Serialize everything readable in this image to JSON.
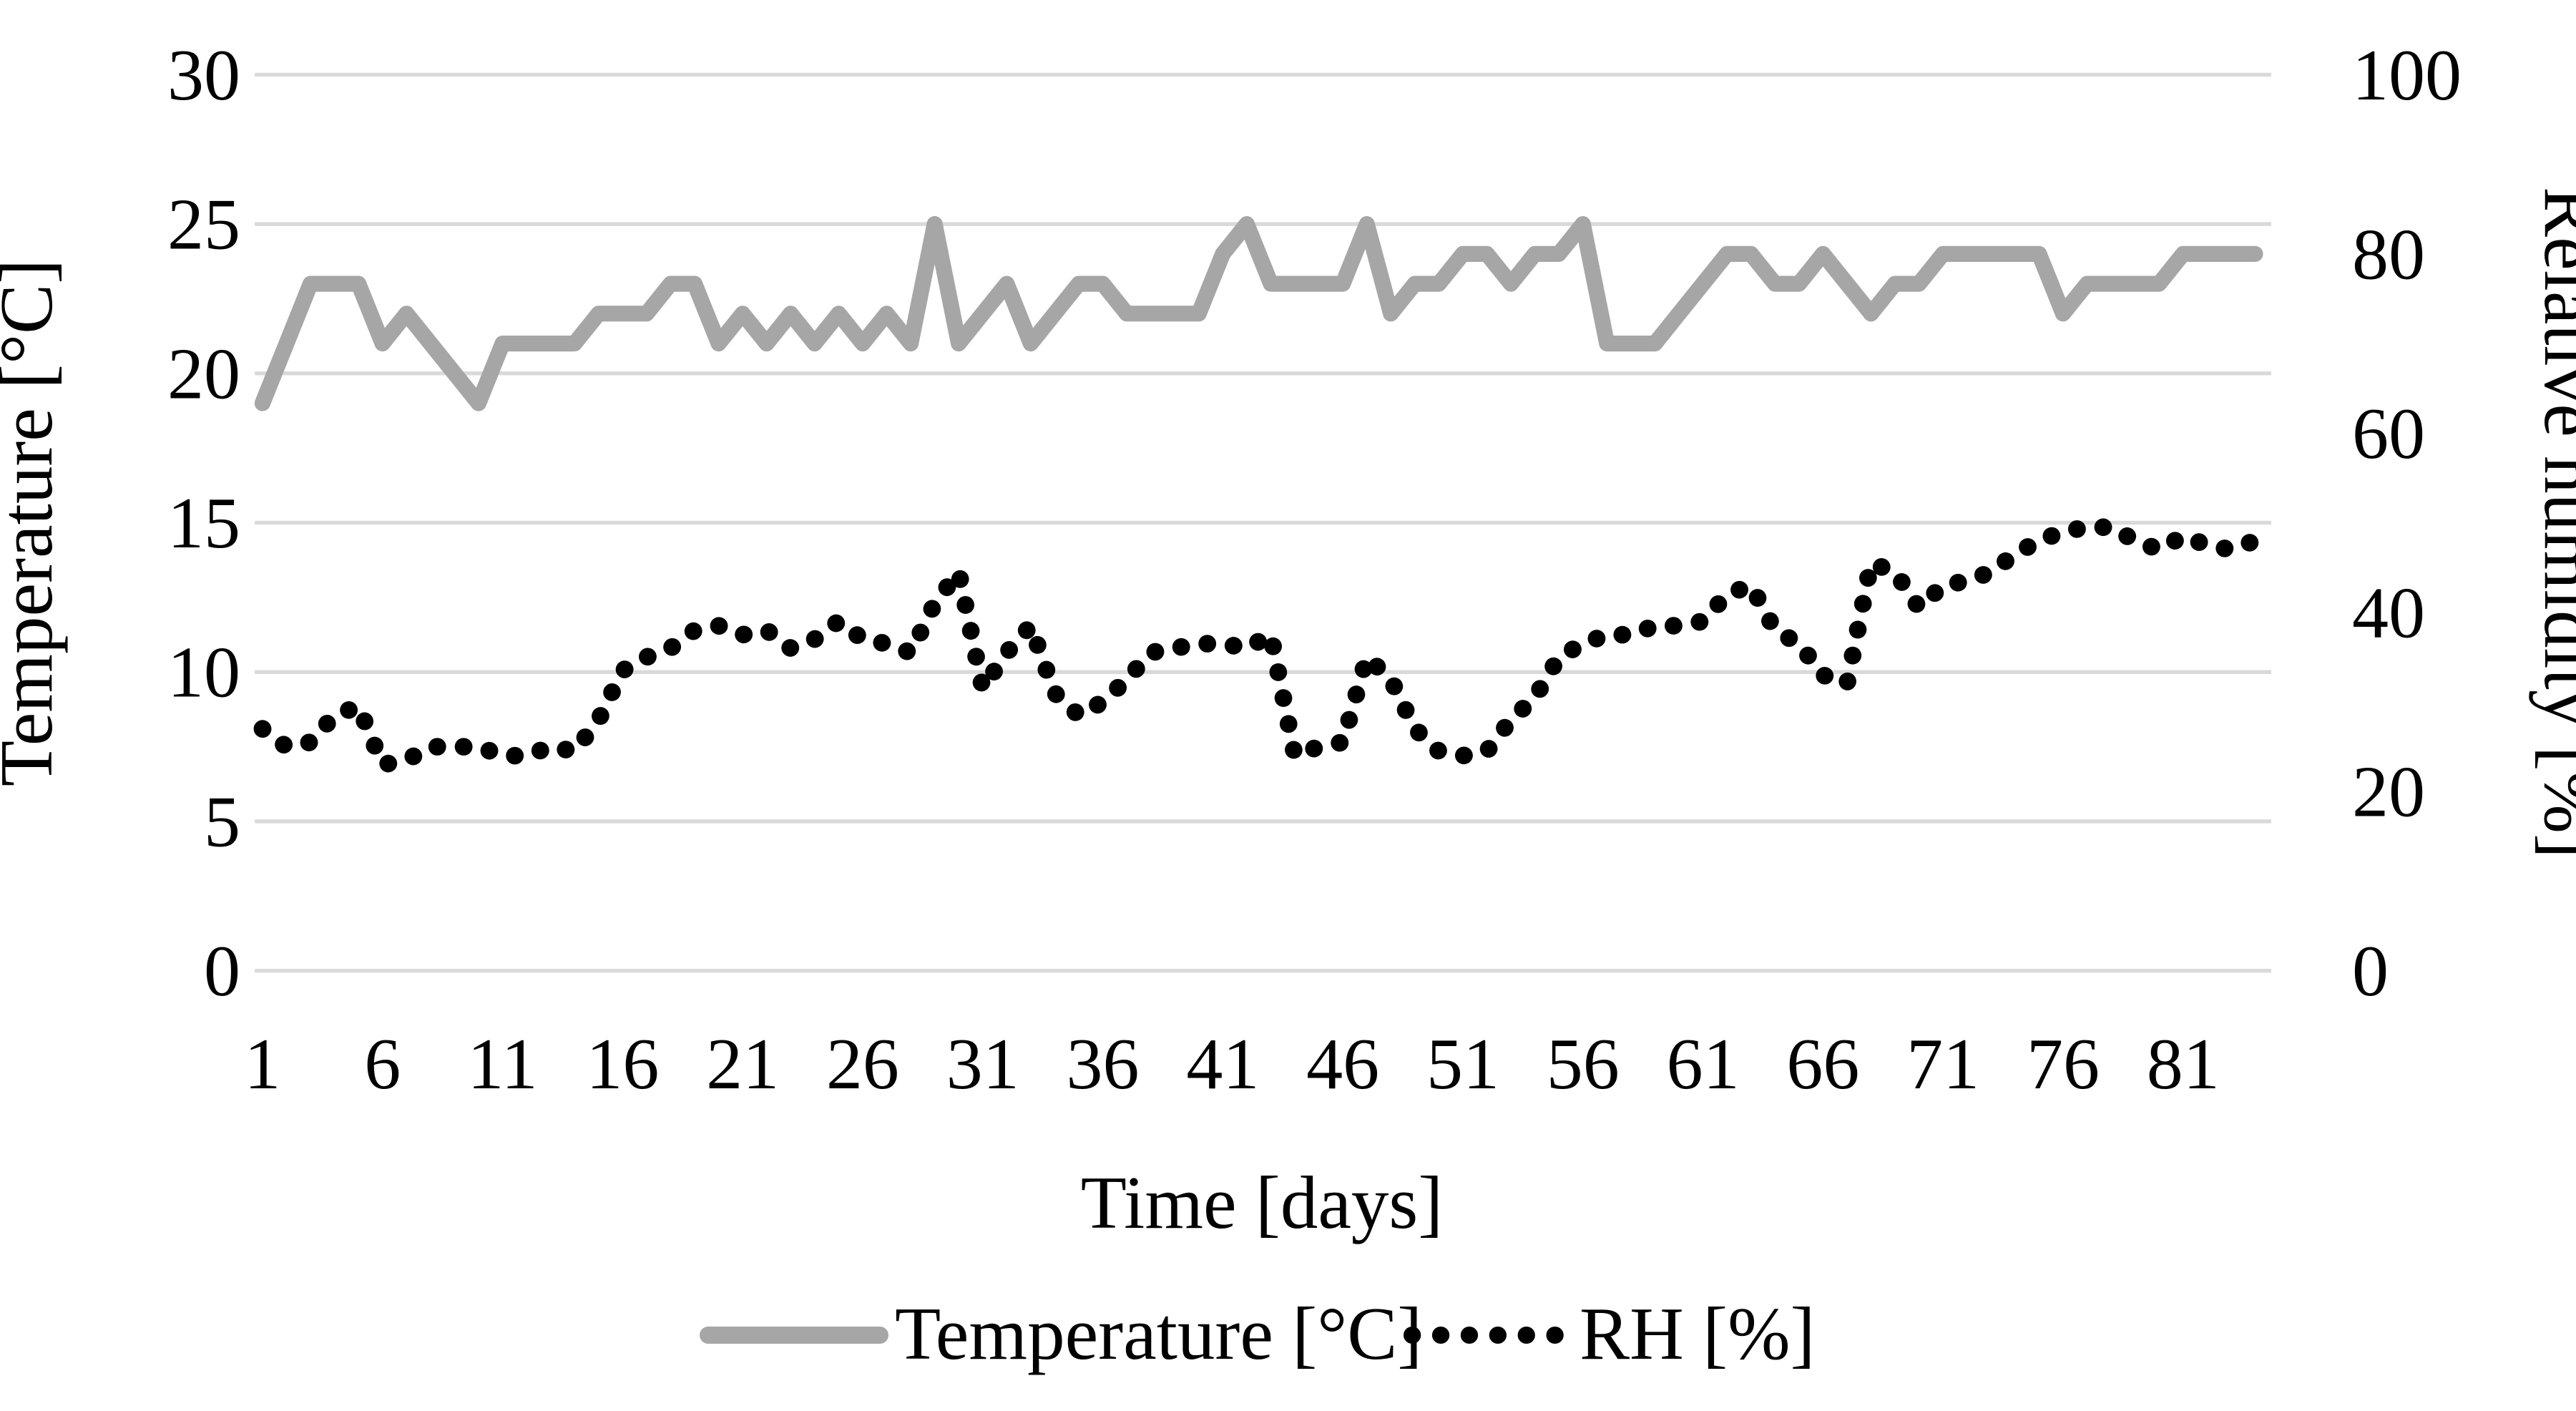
{
  "chart_data": {
    "type": "line",
    "title": "",
    "xlabel": "Time [days]",
    "ylabel_left": "Temperature [°C]",
    "ylabel_right": "Relative humidity [%]",
    "x_days": 84,
    "x_tick_labels": [
      1,
      6,
      11,
      16,
      21,
      26,
      31,
      36,
      41,
      46,
      51,
      56,
      61,
      66,
      71,
      76,
      81
    ],
    "left_axis": {
      "min": 0,
      "max": 30,
      "ticks": [
        30,
        25,
        20,
        15,
        10,
        5,
        0
      ]
    },
    "right_axis": {
      "min": 0,
      "max": 100,
      "ticks": [
        100,
        80,
        60,
        40,
        20,
        0
      ]
    },
    "grid": "horizontal",
    "grid_color": "#d9d9d9",
    "background_color": "#ffffff",
    "legend_position": "bottom",
    "series": [
      {
        "name": "Temperature [°C]",
        "axis": "left",
        "style": "solid",
        "color": "#a6a6a6",
        "values": [
          19,
          21,
          23,
          23,
          23,
          21,
          22,
          21,
          20,
          19,
          21,
          21,
          21,
          21,
          22,
          22,
          22,
          23,
          23,
          21,
          22,
          21,
          22,
          21,
          22,
          21,
          22,
          21,
          25,
          21,
          22,
          23,
          21,
          22,
          23,
          23,
          22,
          22,
          22,
          22,
          24,
          25,
          23,
          23,
          23,
          23,
          25,
          22,
          23,
          23,
          24,
          24,
          23,
          24,
          24,
          25,
          21,
          21,
          21,
          22,
          23,
          24,
          24,
          23,
          23,
          24,
          23,
          22,
          23,
          23,
          24,
          24,
          24,
          24,
          24,
          22,
          23,
          23,
          23,
          23,
          24,
          24,
          24,
          24
        ]
      },
      {
        "name": "RH [%]",
        "axis": "right",
        "style": "dotted",
        "color": "#000000",
        "values": [
          27,
          25,
          25.5,
          28.5,
          29.5,
          23,
          23.5,
          25,
          25,
          25,
          24,
          24,
          25,
          24.5,
          28,
          33.5,
          35,
          36,
          38,
          38.5,
          37.5,
          38,
          36,
          37,
          39,
          37,
          36.5,
          35.5,
          41,
          44.5,
          31.5,
          35.5,
          38.5,
          31,
          28.5,
          30,
          32.5,
          35.5,
          36,
          36.5,
          36.5,
          36,
          37.5,
          24,
          25,
          25.5,
          35,
          32.5,
          27,
          24.5,
          24,
          24.5,
          28,
          30.5,
          35,
          36.5,
          37.5,
          37.5,
          38.5,
          38.5,
          39,
          42,
          43,
          38,
          36.5,
          33,
          32,
          45.5,
          44.5,
          40.5,
          43,
          43.5,
          44.5,
          46.5,
          48,
          49,
          49.5,
          49.5,
          48,
          47,
          48.5,
          47.5,
          47,
          48
        ]
      }
    ],
    "legend": [
      "Temperature [°C]",
      "RH [%]"
    ]
  }
}
